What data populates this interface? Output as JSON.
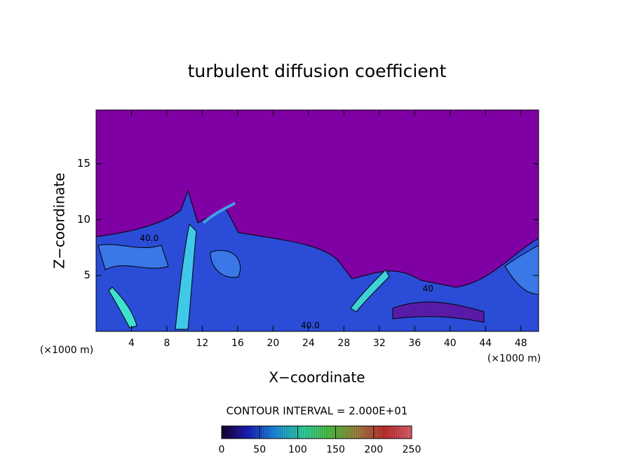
{
  "chart_data": {
    "type": "contour",
    "title": "turbulent diffusion coefficient",
    "xlabel": "X−coordinate",
    "ylabel": "Z−coordinate",
    "x_unit": "(×1000 m)",
    "xlim": [
      0,
      50
    ],
    "ylim": [
      0,
      19.8
    ],
    "xticks": [
      4,
      8,
      12,
      16,
      20,
      24,
      28,
      32,
      36,
      40,
      44,
      48
    ],
    "yticks": [
      5,
      10,
      15
    ],
    "background_color": "#7f00a3",
    "contour_interval_label": "CONTOUR INTERVAL = 2.000E+01",
    "contour_labels": {
      "x": [
        6,
        24.2,
        37.5
      ],
      "z": [
        8.3,
        0.5,
        3.8
      ],
      "values": [
        40,
        40,
        40
      ],
      "value_labels": [
        "40.0",
        "40.0",
        "40"
      ]
    },
    "colorbar": {
      "clim": [
        0,
        250
      ],
      "ticks": [
        0,
        50,
        100,
        150,
        200,
        250
      ],
      "colors": [
        "#1a0030",
        "#1a20c0",
        "#2090e0",
        "#30d0a0",
        "#50c040",
        "#a08040",
        "#c03030",
        "#e06070"
      ]
    }
  }
}
